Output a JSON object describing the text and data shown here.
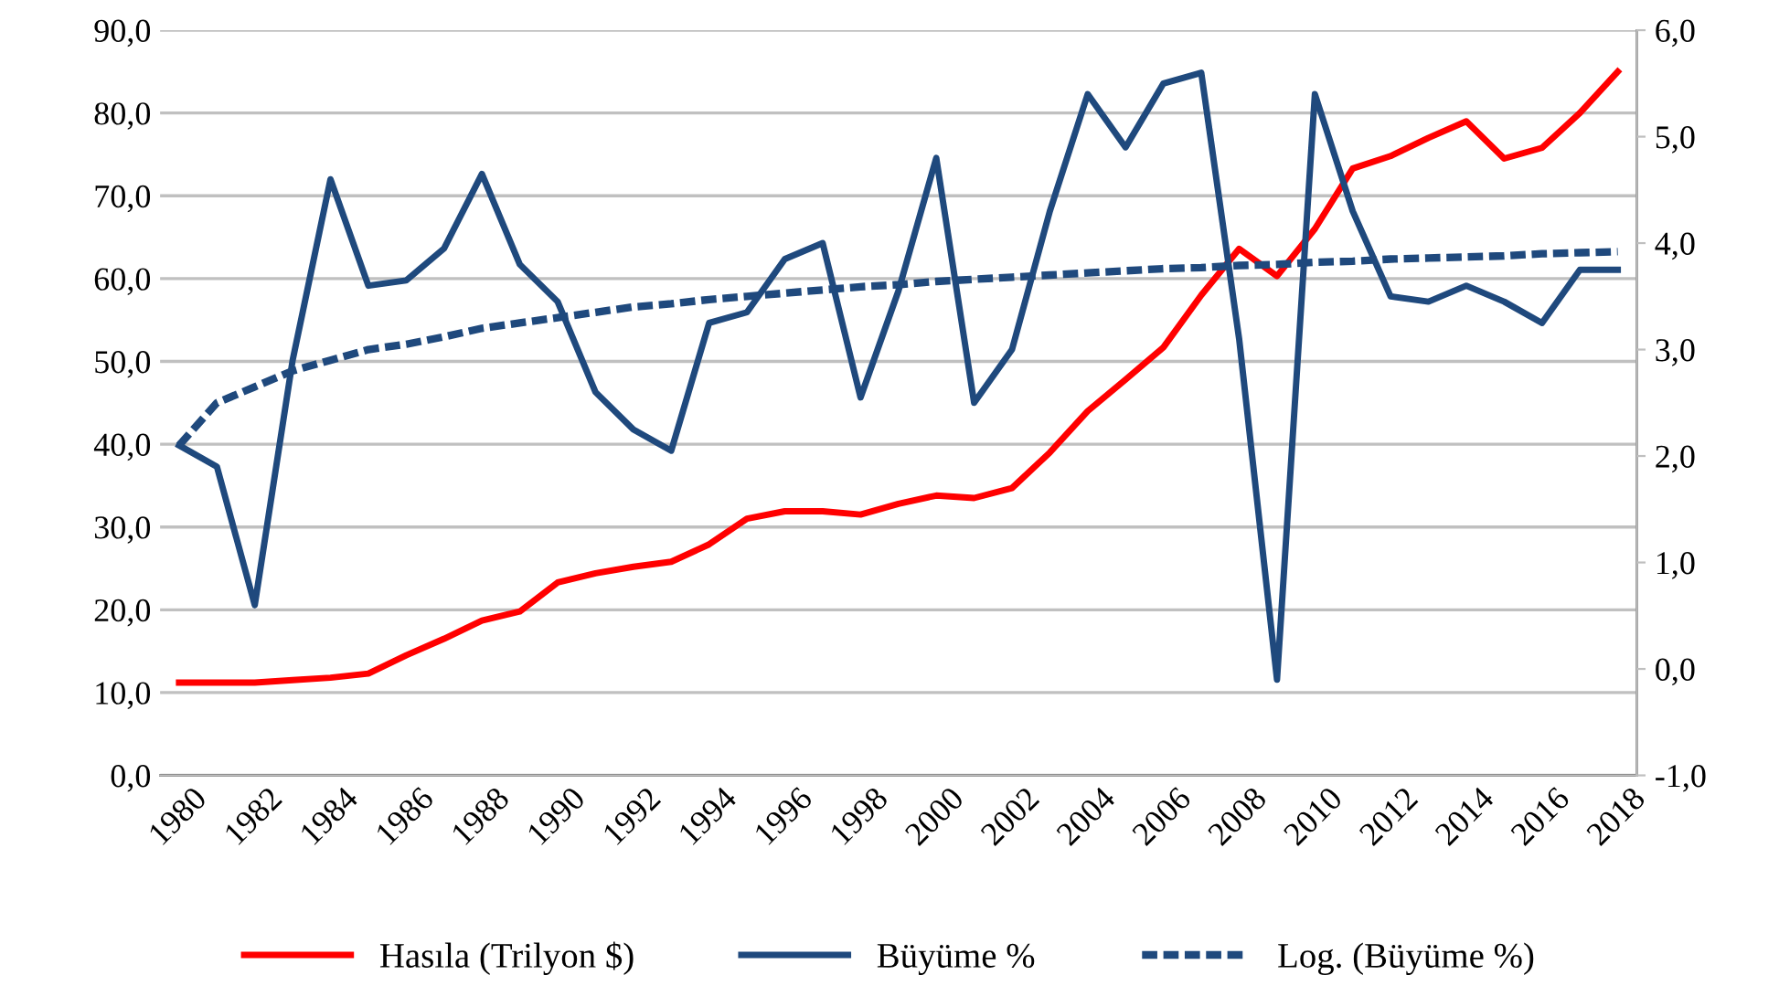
{
  "chart_data": {
    "type": "line",
    "categories": [
      "1980",
      null,
      "1982",
      null,
      "1984",
      null,
      "1986",
      null,
      "1988",
      null,
      "1990",
      null,
      "1992",
      null,
      "1994",
      null,
      "1996",
      null,
      "1998",
      null,
      "2000",
      null,
      "2002",
      null,
      "2004",
      null,
      "2006",
      null,
      "2008",
      null,
      "2010",
      null,
      "2012",
      null,
      "2014",
      null,
      "2016",
      null,
      "2018"
    ],
    "series": [
      {
        "name": "Hasıla (Trilyon $)",
        "color": "#ff0000",
        "line_style": "solid",
        "values": [
          11.2,
          11.2,
          11.2,
          11.5,
          11.8,
          12.3,
          14.5,
          16.5,
          18.7,
          19.8,
          23.3,
          24.4,
          25.2,
          25.8,
          27.9,
          31.0,
          31.9,
          31.9,
          31.5,
          32.8,
          33.8,
          33.5,
          34.7,
          39.0,
          44.0,
          47.8,
          51.7,
          58.0,
          63.6,
          60.3,
          66.0,
          73.3,
          74.8,
          77.0,
          79.0,
          74.5,
          75.8,
          80.0,
          85.0
        ]
      },
      {
        "name": "Büyüme %",
        "color": "#1f497d",
        "axis": "y2",
        "line_style": "solid",
        "values": [
          2.1,
          1.9,
          0.6,
          2.9,
          4.6,
          3.6,
          3.65,
          3.95,
          4.65,
          3.8,
          3.45,
          2.6,
          2.25,
          2.05,
          3.25,
          3.35,
          3.85,
          4.0,
          2.55,
          3.55,
          4.8,
          2.5,
          3.0,
          4.3,
          5.4,
          4.9,
          5.5,
          5.6,
          3.1,
          -0.1,
          5.4,
          4.3,
          3.5,
          3.45,
          3.6,
          3.45,
          3.25,
          3.75,
          3.75
        ]
      },
      {
        "name": "Log. (Büyüme %)",
        "color": "#1f497d",
        "axis": "y2",
        "line_style": "dashed",
        "values": [
          2.1,
          2.5,
          2.65,
          2.8,
          2.9,
          3.0,
          3.05,
          3.12,
          3.2,
          3.25,
          3.3,
          3.35,
          3.4,
          3.43,
          3.47,
          3.5,
          3.53,
          3.56,
          3.59,
          3.61,
          3.64,
          3.66,
          3.68,
          3.7,
          3.72,
          3.74,
          3.76,
          3.77,
          3.79,
          3.8,
          3.82,
          3.83,
          3.85,
          3.86,
          3.87,
          3.88,
          3.9,
          3.91,
          3.92
        ]
      }
    ],
    "ylim": [
      0,
      90
    ],
    "yticks": [
      {
        "value": 0,
        "label": "0,0"
      },
      {
        "value": 10,
        "label": "10,0"
      },
      {
        "value": 20,
        "label": "20,0"
      },
      {
        "value": 30,
        "label": "30,0"
      },
      {
        "value": 40,
        "label": "40,0"
      },
      {
        "value": 50,
        "label": "50,0"
      },
      {
        "value": 60,
        "label": "60,0"
      },
      {
        "value": 70,
        "label": "70,0"
      },
      {
        "value": 80,
        "label": "80,0"
      },
      {
        "value": 90,
        "label": "90,0"
      }
    ],
    "y2lim": [
      -1,
      6
    ],
    "y2ticks": [
      {
        "value": -1,
        "label": "-1,0"
      },
      {
        "value": 0,
        "label": "0,0"
      },
      {
        "value": 1,
        "label": "1,0"
      },
      {
        "value": 2,
        "label": "2,0"
      },
      {
        "value": 3,
        "label": "3,0"
      },
      {
        "value": 4,
        "label": "4,0"
      },
      {
        "value": 5,
        "label": "5,0"
      },
      {
        "value": 6,
        "label": "6,0"
      }
    ],
    "grid": "y",
    "legend": "bottom",
    "marker": "none"
  }
}
